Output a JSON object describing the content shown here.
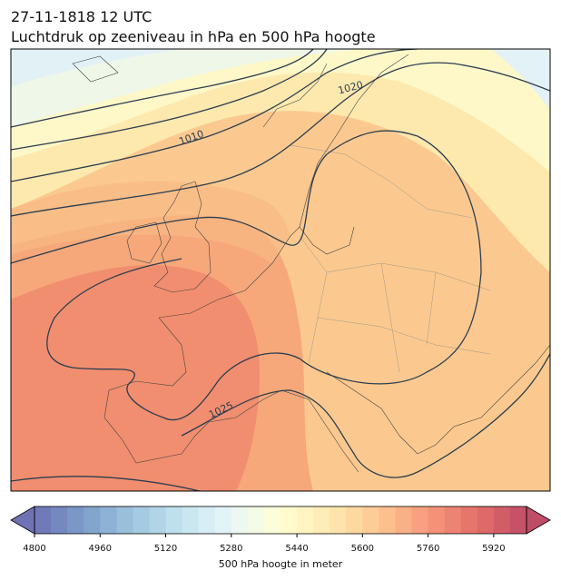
{
  "header": {
    "date": "27-11-1818 12 UTC",
    "title": "Luchtdruk op zeeniveau in hPa en 500 hPa hoogte"
  },
  "contour_labels": [
    1010,
    1020,
    1025
  ],
  "colorbar": {
    "range": [
      4800,
      6000
    ],
    "ticks": [
      4800,
      4960,
      5120,
      5280,
      5440,
      5600,
      5760,
      5920
    ],
    "label": "500 hPa hoogte in meter"
  }
}
